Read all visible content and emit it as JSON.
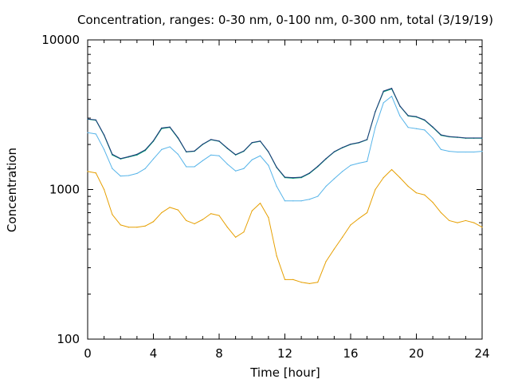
{
  "chart_data": {
    "type": "line",
    "title": "Concentration, ranges: 0-30 nm, 0-100 nm, 0-300 nm, total (3/19/19)",
    "xlabel": "Time [hour]",
    "ylabel": "Concentration",
    "xlim": [
      0,
      24
    ],
    "ylim": [
      100,
      10000
    ],
    "yscale": "log",
    "xticks": [
      0,
      4,
      8,
      12,
      16,
      20,
      24
    ],
    "xtick_labels": [
      "0",
      "4",
      "8",
      "12",
      "16",
      "20",
      "24"
    ],
    "yticks": [
      100,
      1000,
      10000
    ],
    "ytick_labels": [
      "100",
      "1000",
      "10000"
    ],
    "grid": false,
    "series": [
      {
        "color": "#e69f00",
        "x": [
          0,
          0.5,
          1.0,
          1.5,
          2.0,
          2.5,
          3.0,
          3.5,
          4.0,
          4.5,
          5.0,
          5.5,
          6.0,
          6.5,
          7.0,
          7.5,
          8.0,
          8.5,
          9.0,
          9.5,
          10.0,
          10.5,
          11.0,
          11.5,
          12.0,
          12.5,
          13.0,
          13.5,
          14.0,
          14.5,
          15.0,
          15.5,
          16.0,
          16.5,
          17.0,
          17.5,
          18.0,
          18.5,
          19.0,
          19.5,
          20.0,
          20.5,
          21.0,
          21.5,
          22.0,
          22.5,
          23.0,
          23.5,
          24.0
        ],
        "values": [
          1320,
          1290,
          1000,
          680,
          580,
          560,
          560,
          570,
          610,
          700,
          760,
          730,
          620,
          590,
          630,
          690,
          670,
          560,
          480,
          520,
          720,
          810,
          650,
          360,
          250,
          250,
          240,
          235,
          240,
          330,
          400,
          480,
          580,
          640,
          700,
          1000,
          1200,
          1360,
          1200,
          1050,
          950,
          920,
          820,
          700,
          620,
          600,
          620,
          600,
          560
        ]
      },
      {
        "color": "#56b4e9",
        "x": [
          0,
          0.5,
          1.0,
          1.5,
          2.0,
          2.5,
          3.0,
          3.5,
          4.0,
          4.5,
          5.0,
          5.5,
          6.0,
          6.5,
          7.0,
          7.5,
          8.0,
          8.5,
          9.0,
          9.5,
          10.0,
          10.5,
          11.0,
          11.5,
          12.0,
          12.5,
          13.0,
          13.5,
          14.0,
          14.5,
          15.0,
          15.5,
          16.0,
          16.5,
          17.0,
          17.5,
          18.0,
          18.5,
          19.0,
          19.5,
          20.0,
          20.5,
          21.0,
          21.5,
          22.0,
          22.5,
          23.0,
          23.5,
          24.0
        ],
        "values": [
          2400,
          2350,
          1850,
          1380,
          1230,
          1240,
          1280,
          1380,
          1600,
          1850,
          1930,
          1720,
          1420,
          1420,
          1560,
          1700,
          1680,
          1480,
          1330,
          1380,
          1580,
          1680,
          1450,
          1050,
          840,
          840,
          840,
          860,
          900,
          1050,
          1180,
          1320,
          1450,
          1500,
          1540,
          2600,
          3800,
          4200,
          3100,
          2600,
          2550,
          2500,
          2200,
          1850,
          1800,
          1780,
          1780,
          1780,
          1800
        ]
      },
      {
        "color": "#009e73",
        "x": [
          0,
          0.5,
          1.0,
          1.5,
          2.0,
          2.5,
          3.0,
          3.5,
          4.0,
          4.5,
          5.0,
          5.5,
          6.0,
          6.5,
          7.0,
          7.5,
          8.0,
          8.5,
          9.0,
          9.5,
          10.0,
          10.5,
          11.0,
          11.5,
          12.0,
          12.5,
          13.0,
          13.5,
          14.0,
          14.5,
          15.0,
          15.5,
          16.0,
          16.5,
          17.0,
          17.5,
          18.0,
          18.5,
          19.0,
          19.5,
          20.0,
          20.5,
          21.0,
          21.5,
          22.0,
          22.5,
          23.0,
          23.5,
          24.0
        ],
        "values": [
          2950,
          2900,
          2300,
          1700,
          1600,
          1650,
          1700,
          1820,
          2100,
          2550,
          2600,
          2200,
          1780,
          1800,
          2000,
          2150,
          2100,
          1880,
          1700,
          1800,
          2050,
          2100,
          1780,
          1400,
          1200,
          1190,
          1200,
          1280,
          1420,
          1600,
          1780,
          1900,
          2000,
          2050,
          2150,
          3300,
          4500,
          4700,
          3600,
          3100,
          3050,
          2900,
          2600,
          2300,
          2250,
          2230,
          2200,
          2200,
          2200
        ]
      },
      {
        "color": "#1f3a7a",
        "x": [
          0,
          0.5,
          1.0,
          1.5,
          2.0,
          2.5,
          3.0,
          3.5,
          4.0,
          4.5,
          5.0,
          5.5,
          6.0,
          6.5,
          7.0,
          7.5,
          8.0,
          8.5,
          9.0,
          9.5,
          10.0,
          10.5,
          11.0,
          11.5,
          12.0,
          12.5,
          13.0,
          13.5,
          14.0,
          14.5,
          15.0,
          15.5,
          16.0,
          16.5,
          17.0,
          17.5,
          18.0,
          18.5,
          19.0,
          19.5,
          20.0,
          20.5,
          21.0,
          21.5,
          22.0,
          22.5,
          23.0,
          23.5,
          24.0
        ],
        "values": [
          2960,
          2920,
          2320,
          1720,
          1610,
          1660,
          1720,
          1840,
          2120,
          2580,
          2620,
          2220,
          1790,
          1810,
          2010,
          2160,
          2110,
          1890,
          1710,
          1810,
          2060,
          2110,
          1790,
          1410,
          1210,
          1200,
          1210,
          1290,
          1430,
          1610,
          1790,
          1910,
          2010,
          2060,
          2160,
          3320,
          4550,
          4750,
          3620,
          3120,
          3070,
          2920,
          2620,
          2320,
          2260,
          2240,
          2210,
          2210,
          2210
        ]
      }
    ]
  }
}
